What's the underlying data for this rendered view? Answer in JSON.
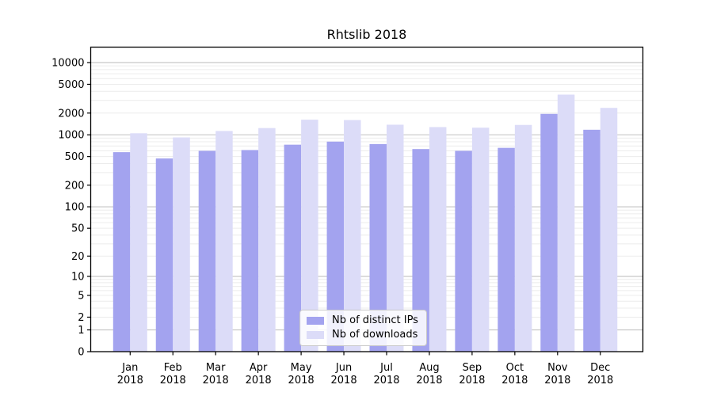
{
  "figure": {
    "background": "#ffffff",
    "frame_color": "#000000",
    "text_color": "#000000"
  },
  "chart_data": {
    "type": "bar",
    "title": "Rhtslib 2018",
    "xlabel": "",
    "ylabel": "",
    "y_scale": "log10(1+x)",
    "ylim": [
      0,
      16500
    ],
    "grid": {
      "enabled": true,
      "major_color": "#c8c8c8",
      "minor_color": "#ececec"
    },
    "legend_position": "lower center",
    "categories": [
      "Jan",
      "Feb",
      "Mar",
      "Apr",
      "May",
      "Jun",
      "Jul",
      "Aug",
      "Sep",
      "Oct",
      "Nov",
      "Dec"
    ],
    "year": "2018",
    "y_ticks": [
      10000,
      5000,
      2000,
      1000,
      500,
      200,
      100,
      50,
      20,
      10,
      5,
      2,
      1,
      0
    ],
    "series": [
      {
        "name": "Nb of distinct IPs",
        "color": "#a3a3ef",
        "values": [
          575,
          470,
          600,
          615,
          730,
          805,
          745,
          635,
          600,
          660,
          1950,
          1175
        ]
      },
      {
        "name": "Nb of downloads",
        "color": "#dcdcf8",
        "values": [
          1050,
          920,
          1130,
          1240,
          1620,
          1600,
          1380,
          1280,
          1255,
          1370,
          3600,
          2360
        ]
      }
    ]
  }
}
